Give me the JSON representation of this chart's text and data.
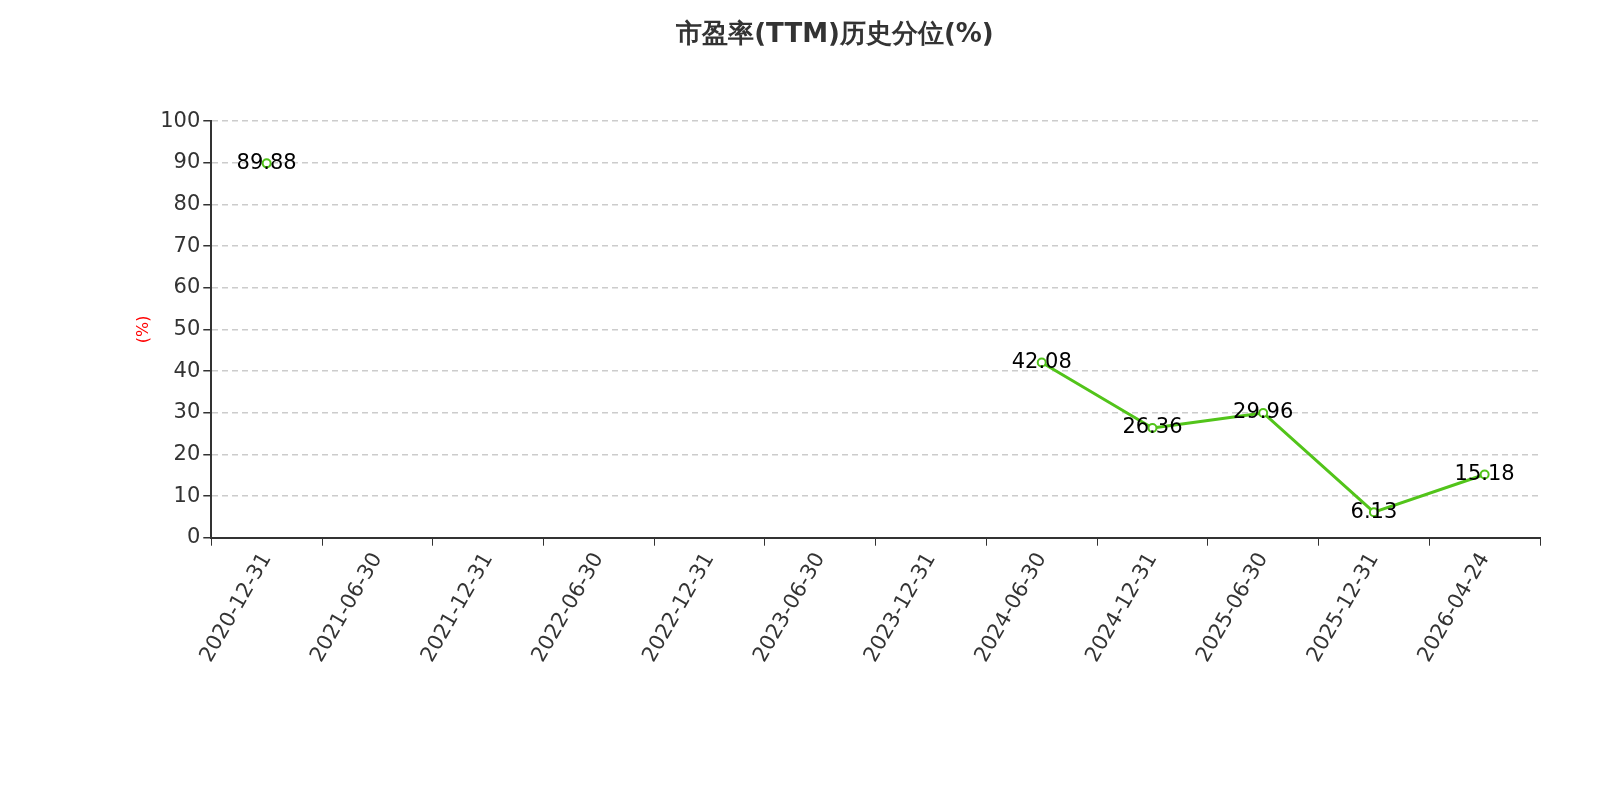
{
  "chart_data": {
    "type": "line",
    "title": "市盈率(TTM)历史分位(%)",
    "ylabel": "(%)",
    "categories": [
      "2020-12-31",
      "2021-06-30",
      "2021-12-31",
      "2022-06-30",
      "2022-12-31",
      "2023-06-30",
      "2023-12-31",
      "2024-06-30",
      "2024-12-31",
      "2025-06-30",
      "2025-12-31",
      "2026-04-24"
    ],
    "series": [
      {
        "color": "#52c41a",
        "values": [
          89.88,
          null,
          null,
          null,
          null,
          null,
          null,
          42.08,
          26.36,
          29.96,
          6.13,
          15.18
        ]
      }
    ],
    "ylim": [
      0,
      100
    ],
    "yticks": [
      0,
      10,
      20,
      30,
      40,
      50,
      60,
      70,
      80,
      90,
      100
    ],
    "grid": "y",
    "legend": false,
    "marker": "circle",
    "line_style": "solid",
    "data_labels": true
  }
}
